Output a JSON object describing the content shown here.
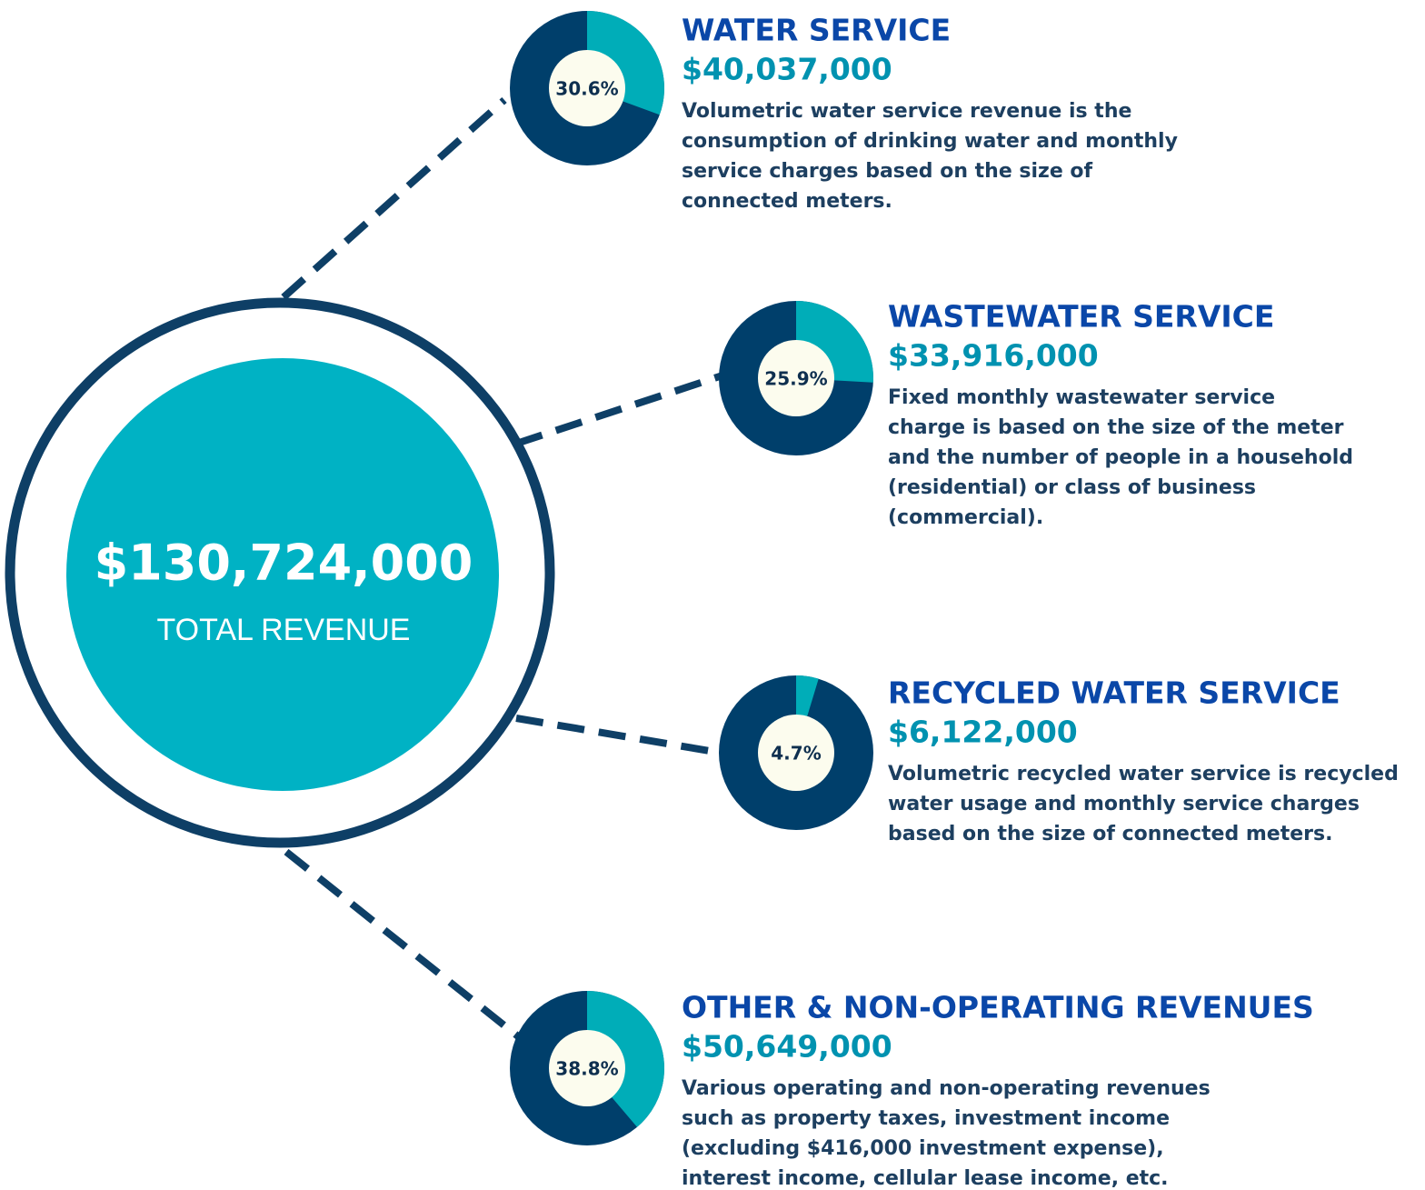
{
  "total": {
    "amount": "$130,724,000",
    "label": "TOTAL REVENUE"
  },
  "segments": [
    {
      "title": "WATER SERVICE",
      "amount": "$40,037,000",
      "share": 30.6,
      "share_label": "30.6%",
      "description": [
        "Volumetric water service revenue is the",
        "consumption of drinking water and monthly",
        "service charges based on the size of",
        "connected meters."
      ]
    },
    {
      "title": "WASTEWATER SERVICE",
      "amount": "$33,916,000",
      "share": 25.9,
      "share_label": "25.9%",
      "description": [
        "Fixed monthly wastewater service",
        "charge is based on the size of the meter",
        "and the number of people in a household",
        "(residential) or class of business",
        "(commercial)."
      ]
    },
    {
      "title": "RECYCLED WATER SERVICE",
      "amount": "$6,122,000",
      "share": 4.7,
      "share_label": "4.7%",
      "description": [
        "Volumetric recycled water service is recycled",
        "water usage and monthly service charges",
        "based on the size of connected meters."
      ]
    },
    {
      "title": "OTHER & NON-OPERATING REVENUES",
      "amount": "$50,649,000",
      "share": 38.8,
      "share_label": "38.8%",
      "description": [
        "Various operating and non-operating revenues",
        "such as property taxes, investment income",
        "(excluding $416,000 investment expense),",
        "interest income, cellular lease income, etc."
      ]
    }
  ]
}
